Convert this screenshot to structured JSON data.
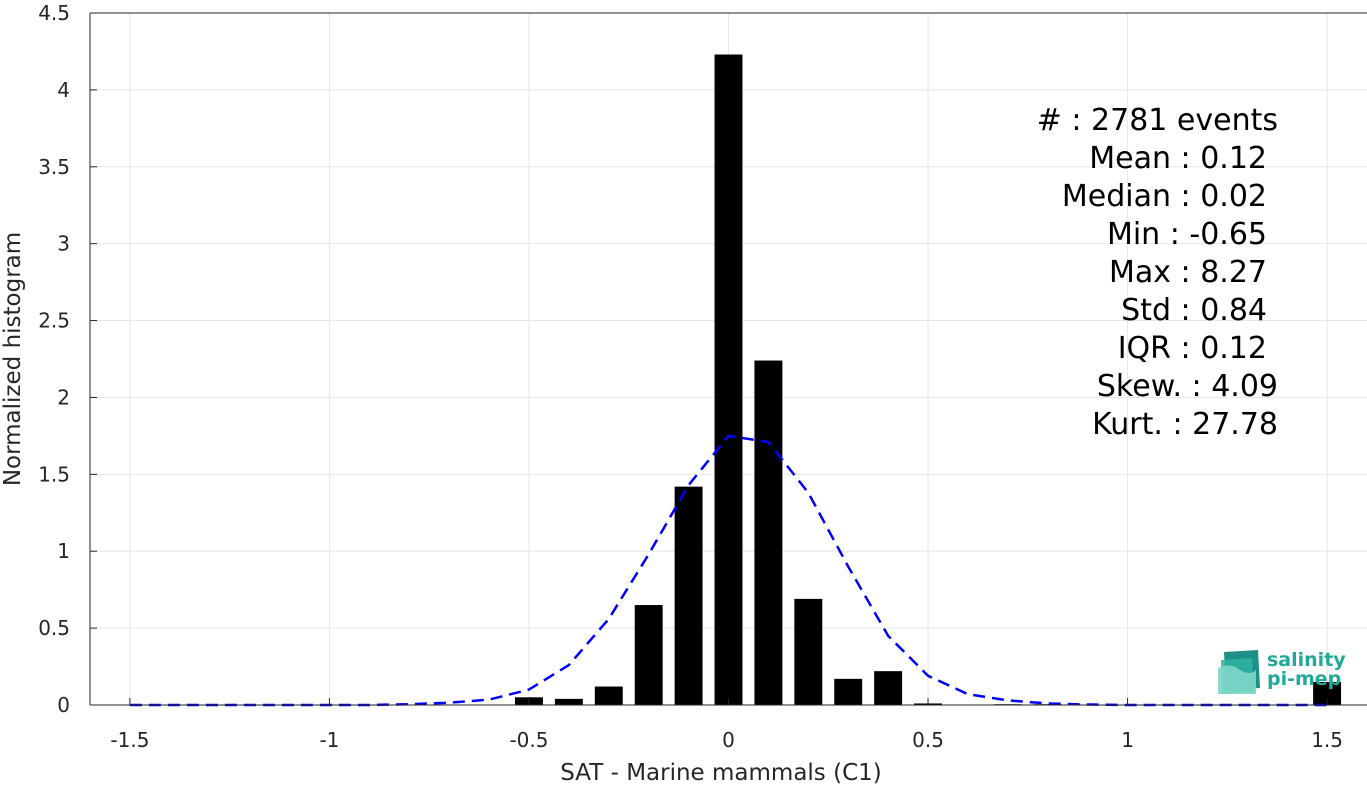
{
  "chart_data": {
    "type": "bar",
    "title": "",
    "xlabel": "SAT - Marine mammals (C1)",
    "ylabel": "Normalized histogram",
    "xlim": [
      -1.6,
      1.6
    ],
    "ylim": [
      0,
      4.5
    ],
    "xticks": [
      -1.5,
      -1,
      -0.5,
      0,
      0.5,
      1,
      1.5
    ],
    "xtick_labels": [
      "-1.5",
      "-1",
      "-0.5",
      "0",
      "0.5",
      "1",
      "1.5"
    ],
    "yticks": [
      0,
      0.5,
      1,
      1.5,
      2,
      2.5,
      3,
      3.5,
      4,
      4.5
    ],
    "ytick_labels": [
      "0",
      "0.5",
      "1",
      "1.5",
      "2",
      "2.5",
      "3",
      "3.5",
      "4",
      "4.5"
    ],
    "grid": true,
    "bar_width": 0.07,
    "bars": [
      {
        "x": -0.5,
        "y": 0.05
      },
      {
        "x": -0.4,
        "y": 0.04
      },
      {
        "x": -0.3,
        "y": 0.12
      },
      {
        "x": -0.2,
        "y": 0.65
      },
      {
        "x": -0.1,
        "y": 1.42
      },
      {
        "x": 0.0,
        "y": 4.23
      },
      {
        "x": 0.1,
        "y": 2.24
      },
      {
        "x": 0.2,
        "y": 0.69
      },
      {
        "x": 0.3,
        "y": 0.17
      },
      {
        "x": 0.4,
        "y": 0.22
      },
      {
        "x": 0.5,
        "y": 0.01
      },
      {
        "x": 0.7,
        "y": 0.005
      },
      {
        "x": 0.8,
        "y": 0.005
      },
      {
        "x": 1.5,
        "y": 0.15
      }
    ],
    "bar_color": "#000000",
    "fit_curve": {
      "style": "dashed",
      "color": "#0000ff",
      "x": [
        -1.5,
        -1.4,
        -1.3,
        -1.2,
        -1.1,
        -1.0,
        -0.9,
        -0.8,
        -0.7,
        -0.6,
        -0.5,
        -0.4,
        -0.3,
        -0.2,
        -0.1,
        0.0,
        0.1,
        0.2,
        0.3,
        0.4,
        0.5,
        0.6,
        0.7,
        0.8,
        0.9,
        1.0,
        1.1,
        1.2,
        1.3,
        1.4,
        1.5
      ],
      "y": [
        0,
        0,
        0,
        0,
        0,
        0,
        0,
        0.005,
        0.015,
        0.035,
        0.1,
        0.26,
        0.56,
        0.98,
        1.43,
        1.75,
        1.71,
        1.38,
        0.9,
        0.45,
        0.19,
        0.07,
        0.03,
        0.01,
        0.003,
        0,
        0,
        0,
        0,
        0,
        0
      ]
    },
    "stats": {
      "count": "#  : 2781 events",
      "mean": "Mean : 0.12",
      "median": "Median : 0.02",
      "min": "Min : -0.65",
      "max": "Max : 8.27",
      "std": "Std : 0.84",
      "iqr": "IQR : 0.12",
      "skew": "Skew. : 4.09",
      "kurt": "Kurt. : 27.78"
    }
  },
  "logo": {
    "line1": "salinity",
    "line2": "pi-mep"
  }
}
